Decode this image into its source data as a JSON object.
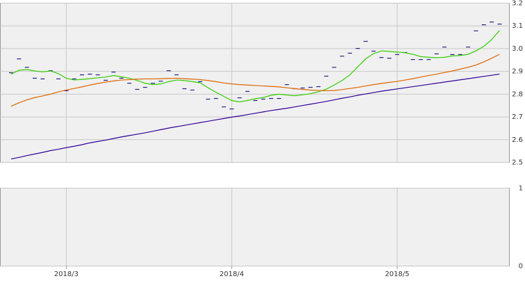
{
  "chart_data": [
    {
      "type": "line",
      "categories": [
        null,
        null,
        null,
        null,
        null,
        null,
        null,
        "2018/3",
        null,
        null,
        null,
        null,
        null,
        null,
        null,
        null,
        null,
        null,
        null,
        null,
        null,
        null,
        null,
        null,
        null,
        null,
        null,
        null,
        "2018/4",
        null,
        null,
        null,
        null,
        null,
        null,
        null,
        null,
        null,
        null,
        null,
        null,
        null,
        null,
        null,
        null,
        null,
        null,
        null,
        null,
        "2018/5",
        null,
        null,
        null,
        null,
        null,
        null,
        null,
        null,
        null,
        null,
        null,
        null,
        null
      ],
      "series": [
        {
          "mode": "dash",
          "color": "#222288",
          "values": [
            2.894,
            2.955,
            2.918,
            2.87,
            2.867,
            2.903,
            2.867,
            2.815,
            2.867,
            2.885,
            2.888,
            2.885,
            2.861,
            2.897,
            2.87,
            2.848,
            2.821,
            2.83,
            2.848,
            2.857,
            2.903,
            2.885,
            2.824,
            2.818,
            2.855,
            2.778,
            2.781,
            2.744,
            2.735,
            2.784,
            2.812,
            2.772,
            2.778,
            2.781,
            2.781,
            2.842,
            2.824,
            2.827,
            2.83,
            2.833,
            2.879,
            2.918,
            2.967,
            2.98,
            3.001,
            3.032,
            2.989,
            2.961,
            2.958,
            2.974,
            2.983,
            2.952,
            2.952,
            2.952,
            2.977,
            3.007,
            2.974,
            2.974,
            3.007,
            3.078,
            3.105,
            3.117,
            3.108
          ]
        },
        {
          "mode": "line",
          "color": "#33cc00",
          "values": [
            2.888,
            2.905,
            2.908,
            2.902,
            2.898,
            2.902,
            2.89,
            2.87,
            2.862,
            2.865,
            2.868,
            2.872,
            2.875,
            2.882,
            2.876,
            2.87,
            2.86,
            2.848,
            2.842,
            2.845,
            2.855,
            2.862,
            2.86,
            2.855,
            2.85,
            2.828,
            2.808,
            2.79,
            2.772,
            2.766,
            2.772,
            2.78,
            2.785,
            2.795,
            2.8,
            2.796,
            2.793,
            2.797,
            2.802,
            2.81,
            2.822,
            2.84,
            2.86,
            2.885,
            2.92,
            2.955,
            2.978,
            2.99,
            2.988,
            2.985,
            2.982,
            2.975,
            2.965,
            2.962,
            2.96,
            2.962,
            2.968,
            2.97,
            2.975,
            2.99,
            3.01,
            3.04,
            3.08
          ]
        },
        {
          "mode": "line",
          "color": "#dd6600",
          "values": [
            2.747,
            2.762,
            2.775,
            2.785,
            2.792,
            2.8,
            2.81,
            2.818,
            2.825,
            2.832,
            2.84,
            2.847,
            2.853,
            2.858,
            2.862,
            2.864,
            2.866,
            2.867,
            2.867,
            2.868,
            2.869,
            2.87,
            2.868,
            2.866,
            2.864,
            2.86,
            2.855,
            2.849,
            2.845,
            2.842,
            2.84,
            2.838,
            2.836,
            2.834,
            2.832,
            2.828,
            2.824,
            2.821,
            2.818,
            2.816,
            2.815,
            2.816,
            2.82,
            2.825,
            2.83,
            2.836,
            2.842,
            2.847,
            2.852,
            2.856,
            2.862,
            2.868,
            2.875,
            2.882,
            2.888,
            2.895,
            2.902,
            2.91,
            2.918,
            2.928,
            2.942,
            2.958,
            2.975
          ]
        },
        {
          "mode": "line",
          "color": "#330099",
          "values": [
            2.515,
            2.522,
            2.53,
            2.537,
            2.544,
            2.552,
            2.558,
            2.565,
            2.571,
            2.578,
            2.586,
            2.592,
            2.598,
            2.605,
            2.612,
            2.618,
            2.624,
            2.63,
            2.637,
            2.644,
            2.651,
            2.657,
            2.663,
            2.669,
            2.675,
            2.681,
            2.687,
            2.693,
            2.699,
            2.704,
            2.71,
            2.716,
            2.722,
            2.728,
            2.733,
            2.738,
            2.744,
            2.75,
            2.756,
            2.762,
            2.768,
            2.775,
            2.782,
            2.788,
            2.795,
            2.801,
            2.807,
            2.813,
            2.818,
            2.823,
            2.828,
            2.833,
            2.838,
            2.843,
            2.848,
            2.853,
            2.858,
            2.863,
            2.868,
            2.873,
            2.878,
            2.883,
            2.888
          ]
        }
      ],
      "ylim": [
        2.5,
        3.2
      ],
      "yticks": [
        2.5,
        2.6,
        2.7,
        2.8,
        2.9,
        {
          "value": 3,
          "label": "3.0"
        },
        3.1,
        3.2
      ],
      "grid": true
    },
    {
      "type": "line",
      "series": [],
      "ylim": [
        0,
        1
      ],
      "yticks": [
        0,
        1
      ],
      "grid": true
    }
  ]
}
